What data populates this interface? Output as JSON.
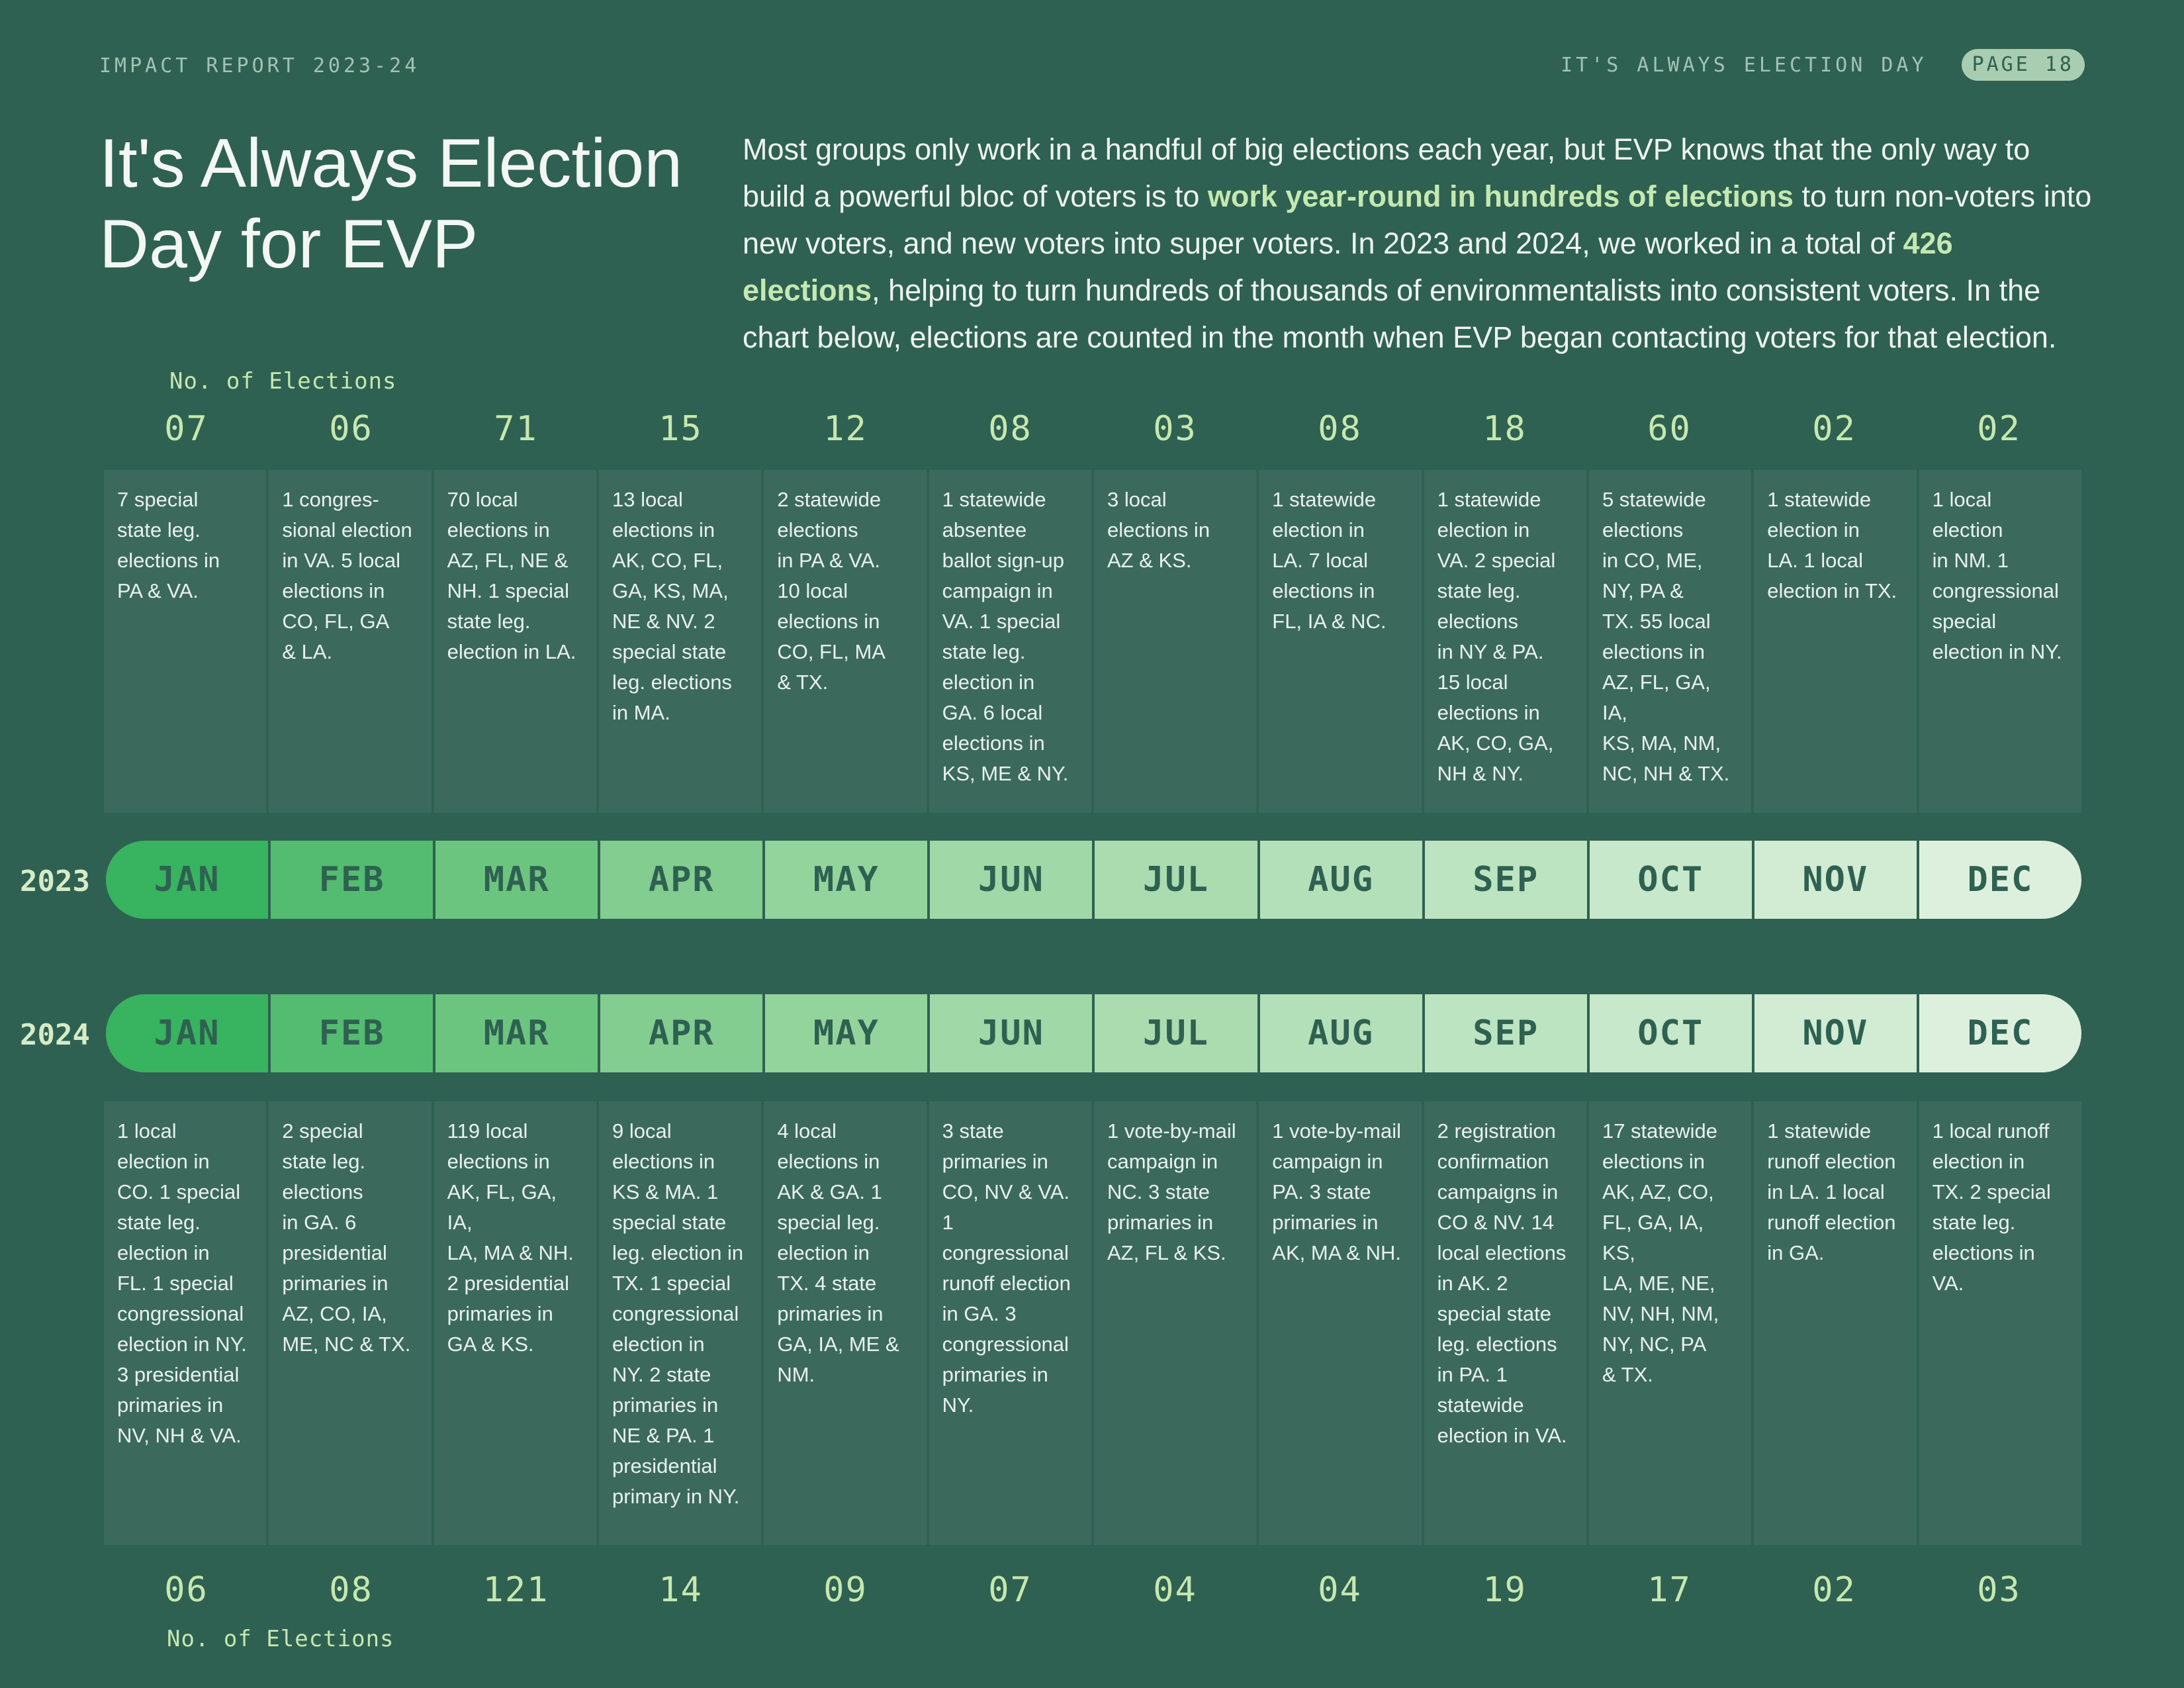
{
  "header": {
    "report": "IMPACT REPORT 2023-24",
    "section": "IT'S ALWAYS ELECTION DAY",
    "page": "PAGE 18"
  },
  "title": "It's Always Election Day for EVP",
  "intro": {
    "p1": "Most groups only work in a handful of big elections each year, but EVP knows that the only way to build a powerful bloc of voters is to ",
    "h1": "work year-round in hundreds of elections",
    "p2": " to turn non-voters into new voters, and new voters into super voters. In 2023 and 2024, we worked in a total of ",
    "h2": "426 elections",
    "p3": ", helping to turn hundreds of thousands of environmentalists into consistent voters. In the chart below, elections are counted in the month when EVP began contacting voters for that election."
  },
  "no_of_elections_label": "No. of Elections",
  "months": [
    "JAN",
    "FEB",
    "MAR",
    "APR",
    "MAY",
    "JUN",
    "JUL",
    "AUG",
    "SEP",
    "OCT",
    "NOV",
    "DEC"
  ],
  "y2023": {
    "year": "2023",
    "counts": [
      "07",
      "06",
      "71",
      "15",
      "12",
      "08",
      "03",
      "08",
      "18",
      "60",
      "02",
      "02"
    ],
    "descriptions": [
      [
        "7 special",
        "state leg.",
        "elections in",
        "PA & VA."
      ],
      [
        "1 congres-",
        "sional election",
        "in VA. 5 local",
        "elections in",
        "CO, FL, GA",
        "& LA."
      ],
      [
        "70 local",
        "elections in",
        "AZ, FL, NE &",
        "NH. 1 special",
        "state leg.",
        "election in LA."
      ],
      [
        "13 local",
        "elections in",
        "AK, CO, FL,",
        "GA, KS, MA,",
        "NE & NV. 2",
        "special state",
        "leg. elections",
        "in MA."
      ],
      [
        "2 statewide",
        "elections",
        "in PA & VA.",
        "10 local",
        "elections in",
        "CO, FL, MA",
        "& TX."
      ],
      [
        "1 statewide",
        "absentee",
        "ballot sign-up",
        "campaign in",
        "VA. 1 special",
        "state leg.",
        "election in",
        "GA. 6 local",
        "elections in",
        "KS, ME & NY."
      ],
      [
        "3 local",
        "elections in",
        "AZ & KS."
      ],
      [
        "1 statewide",
        "election in",
        "LA. 7 local",
        "elections in",
        "FL, IA & NC."
      ],
      [
        "1 statewide",
        "election in",
        "VA. 2 special",
        "state leg.",
        "elections",
        "in NY & PA.",
        "15 local",
        "elections in",
        "AK, CO, GA,",
        "NH & NY."
      ],
      [
        "5 statewide",
        "elections",
        "in CO, ME,",
        "NY, PA &",
        "TX. 55 local",
        "elections in",
        "AZ, FL, GA, IA,",
        "KS, MA, NM,",
        "NC, NH & TX."
      ],
      [
        "1 statewide",
        "election in",
        "LA. 1 local",
        "election in TX."
      ],
      [
        "1 local",
        "election",
        "in NM. 1",
        "congressional",
        "special",
        "election in NY."
      ]
    ]
  },
  "y2024": {
    "year": "2024",
    "counts": [
      "06",
      "08",
      "121",
      "14",
      "09",
      "07",
      "04",
      "04",
      "19",
      "17",
      "02",
      "03"
    ],
    "descriptions": [
      [
        "1 local",
        "election in",
        "CO. 1 special",
        "state leg.",
        "election in",
        "FL. 1 special",
        "congressional",
        "election in NY.",
        "3 presidential",
        "primaries in",
        "NV, NH & VA."
      ],
      [
        "2 special",
        "state leg.",
        "elections",
        "in GA. 6",
        "presidential",
        "primaries in",
        "AZ, CO, IA,",
        "ME, NC & TX."
      ],
      [
        "119 local",
        "elections in",
        "AK, FL, GA, IA,",
        "LA, MA & NH.",
        "2 presidential",
        "primaries in",
        "GA & KS."
      ],
      [
        "9 local",
        "elections in",
        "KS & MA. 1",
        "special state",
        "leg. election in",
        "TX. 1 special",
        "congressional",
        "election in",
        "NY. 2 state",
        "primaries in",
        "NE & PA. 1",
        "presidential",
        "primary in NY."
      ],
      [
        "4 local",
        "elections in",
        "AK & GA. 1",
        "special leg.",
        "election in",
        "TX. 4 state",
        "primaries in",
        "GA, IA, ME &",
        "NM."
      ],
      [
        "3 state",
        "primaries in",
        "CO, NV & VA. 1",
        "congressional",
        "runoff election",
        "in GA. 3",
        "congressional",
        "primaries in",
        "NY."
      ],
      [
        "1 vote-by-mail",
        "campaign in",
        "NC. 3 state",
        "primaries in",
        "AZ, FL & KS."
      ],
      [
        "1 vote-by-mail",
        "campaign in",
        "PA. 3 state",
        "primaries in",
        "AK, MA & NH."
      ],
      [
        "2 registration",
        "confirmation",
        "campaigns in",
        "CO & NV. 14",
        "local elections",
        "in AK. 2",
        "special state",
        "leg. elections",
        "in PA. 1",
        "statewide",
        "election in VA."
      ],
      [
        "17 statewide",
        "elections in",
        "AK, AZ, CO,",
        "FL, GA, IA, KS,",
        "LA, ME, NE,",
        "NV, NH, NM,",
        "NY, NC, PA",
        "& TX."
      ],
      [
        "1 statewide",
        "runoff election",
        "in LA. 1 local",
        "runoff election",
        "in GA."
      ],
      [
        "1 local runoff",
        "election in",
        "TX. 2 special",
        "state leg.",
        "elections in",
        "VA."
      ]
    ]
  }
}
